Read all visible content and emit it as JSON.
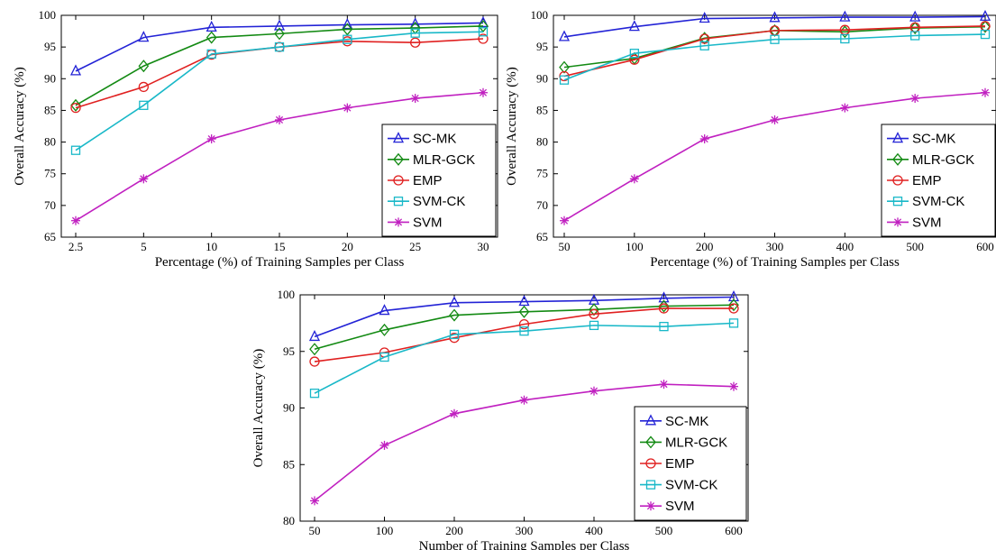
{
  "chart_data": [
    {
      "type": "line",
      "xlabel": "Percentage (%) of Training Samples per Class",
      "ylabel": "Overall Accuracy (%)",
      "categories": [
        "2.5",
        "5",
        "10",
        "15",
        "20",
        "25",
        "30"
      ],
      "ylim": [
        65,
        100
      ],
      "yticks": [
        65,
        70,
        75,
        80,
        85,
        90,
        95,
        100
      ],
      "legend_position": "bottom-right",
      "grid": false,
      "series": [
        {
          "name": "SC-MK",
          "color": "#2323d6",
          "marker": "triangle",
          "values": [
            91.2,
            96.5,
            98.1,
            98.3,
            98.5,
            98.6,
            98.8
          ]
        },
        {
          "name": "MLR-GCK",
          "color": "#138a13",
          "marker": "diamond",
          "values": [
            85.8,
            92.0,
            96.5,
            97.1,
            97.8,
            98.0,
            98.3
          ]
        },
        {
          "name": "EMP",
          "color": "#e02020",
          "marker": "circle",
          "values": [
            85.4,
            88.7,
            93.8,
            95.0,
            95.9,
            95.7,
            96.3
          ]
        },
        {
          "name": "SVM-CK",
          "color": "#19b8c8",
          "marker": "square",
          "values": [
            78.7,
            85.8,
            93.9,
            95.0,
            96.2,
            97.2,
            97.4
          ]
        },
        {
          "name": "SVM",
          "color": "#c020c0",
          "marker": "star",
          "values": [
            67.6,
            74.2,
            80.5,
            83.5,
            85.4,
            86.9,
            87.8
          ]
        }
      ]
    },
    {
      "type": "line",
      "xlabel": "Percentage (%) of Training Samples per Class",
      "ylabel": "Overall Accuracy (%)",
      "categories": [
        "50",
        "100",
        "200",
        "300",
        "400",
        "500",
        "600"
      ],
      "ylim": [
        65,
        100
      ],
      "yticks": [
        65,
        70,
        75,
        80,
        85,
        90,
        95,
        100
      ],
      "legend_position": "bottom-right",
      "grid": false,
      "series": [
        {
          "name": "SC-MK",
          "color": "#2323d6",
          "marker": "triangle",
          "values": [
            96.6,
            98.2,
            99.5,
            99.6,
            99.7,
            99.7,
            99.8
          ]
        },
        {
          "name": "MLR-GCK",
          "color": "#138a13",
          "marker": "diamond",
          "values": [
            91.8,
            93.2,
            96.4,
            97.6,
            97.4,
            98.0,
            98.2
          ]
        },
        {
          "name": "EMP",
          "color": "#e02020",
          "marker": "circle",
          "values": [
            90.4,
            93.0,
            96.3,
            97.6,
            97.7,
            98.1,
            98.3
          ]
        },
        {
          "name": "SVM-CK",
          "color": "#19b8c8",
          "marker": "square",
          "values": [
            89.8,
            94.0,
            95.2,
            96.2,
            96.3,
            96.8,
            97.0
          ]
        },
        {
          "name": "SVM",
          "color": "#c020c0",
          "marker": "star",
          "values": [
            67.6,
            74.2,
            80.5,
            83.5,
            85.4,
            86.9,
            87.8
          ]
        }
      ]
    },
    {
      "type": "line",
      "xlabel": "Number of Training Samples per Class",
      "ylabel": "Overall Accuracy (%)",
      "categories": [
        "50",
        "100",
        "200",
        "300",
        "400",
        "500",
        "600"
      ],
      "ylim": [
        80,
        100
      ],
      "yticks": [
        80,
        85,
        90,
        95,
        100
      ],
      "legend_position": "bottom-right",
      "grid": false,
      "series": [
        {
          "name": "SC-MK",
          "color": "#2323d6",
          "marker": "triangle",
          "values": [
            96.3,
            98.6,
            99.3,
            99.4,
            99.5,
            99.7,
            99.8
          ]
        },
        {
          "name": "MLR-GCK",
          "color": "#138a13",
          "marker": "diamond",
          "values": [
            95.2,
            96.9,
            98.2,
            98.5,
            98.7,
            99.0,
            99.1
          ]
        },
        {
          "name": "EMP",
          "color": "#e02020",
          "marker": "circle",
          "values": [
            94.1,
            94.9,
            96.2,
            97.4,
            98.3,
            98.8,
            98.8
          ]
        },
        {
          "name": "SVM-CK",
          "color": "#19b8c8",
          "marker": "square",
          "values": [
            91.3,
            94.5,
            96.5,
            96.8,
            97.3,
            97.2,
            97.5
          ]
        },
        {
          "name": "SVM",
          "color": "#c020c0",
          "marker": "star",
          "values": [
            81.8,
            86.7,
            89.5,
            90.7,
            91.5,
            92.1,
            91.9
          ]
        }
      ]
    }
  ]
}
